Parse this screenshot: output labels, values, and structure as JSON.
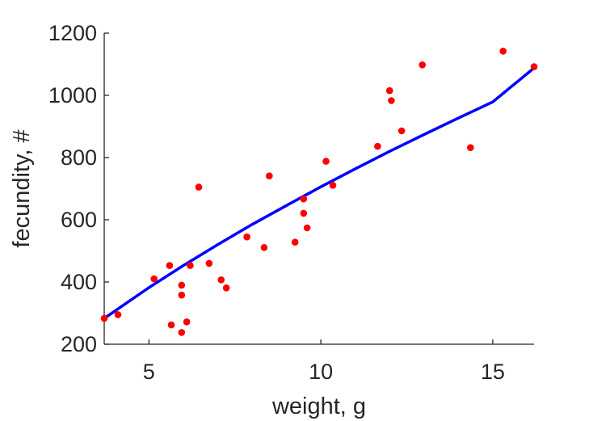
{
  "chart_data": {
    "type": "scatter",
    "title": "",
    "xlabel": "weight, g",
    "ylabel": "fecundity, #",
    "xlim": [
      3.7,
      16.2
    ],
    "ylim": [
      200,
      1200
    ],
    "xticks": [
      5,
      10,
      15
    ],
    "yticks": [
      200,
      400,
      600,
      800,
      1000,
      1200
    ],
    "xtick_labels": [
      "5",
      "10",
      "15"
    ],
    "ytick_labels": [
      "200",
      "400",
      "600",
      "800",
      "1000",
      "1200"
    ],
    "grid": false,
    "colors": {
      "points": "#ff0000",
      "fit": "#0000ff",
      "axis": "#262626"
    },
    "series": [
      {
        "type": "scatter",
        "x": [
          3.7,
          4.1,
          5.15,
          5.6,
          5.65,
          5.95,
          5.95,
          5.95,
          6.1,
          6.2,
          6.45,
          6.75,
          7.1,
          7.25,
          7.85,
          8.35,
          8.5,
          9.25,
          9.5,
          9.5,
          9.6,
          10.15,
          10.35,
          11.65,
          12.0,
          12.05,
          12.35,
          12.95,
          14.35,
          15.3,
          16.2
        ],
        "y": [
          283,
          295,
          410,
          453,
          262,
          238,
          390,
          358,
          272,
          453,
          705,
          460,
          407,
          381,
          545,
          511,
          741,
          528,
          667,
          621,
          574,
          788,
          711,
          836,
          1015,
          983,
          886,
          1098,
          832,
          1142,
          1092
        ]
      },
      {
        "type": "line",
        "x": [
          3.7,
          5,
          6,
          7,
          8,
          9,
          10,
          11,
          12,
          13,
          14,
          15,
          16.2
        ],
        "y": [
          283,
          382,
          453,
          520,
          585,
          646,
          706,
          764,
          820,
          874,
          927,
          979,
          1088
        ]
      }
    ]
  }
}
